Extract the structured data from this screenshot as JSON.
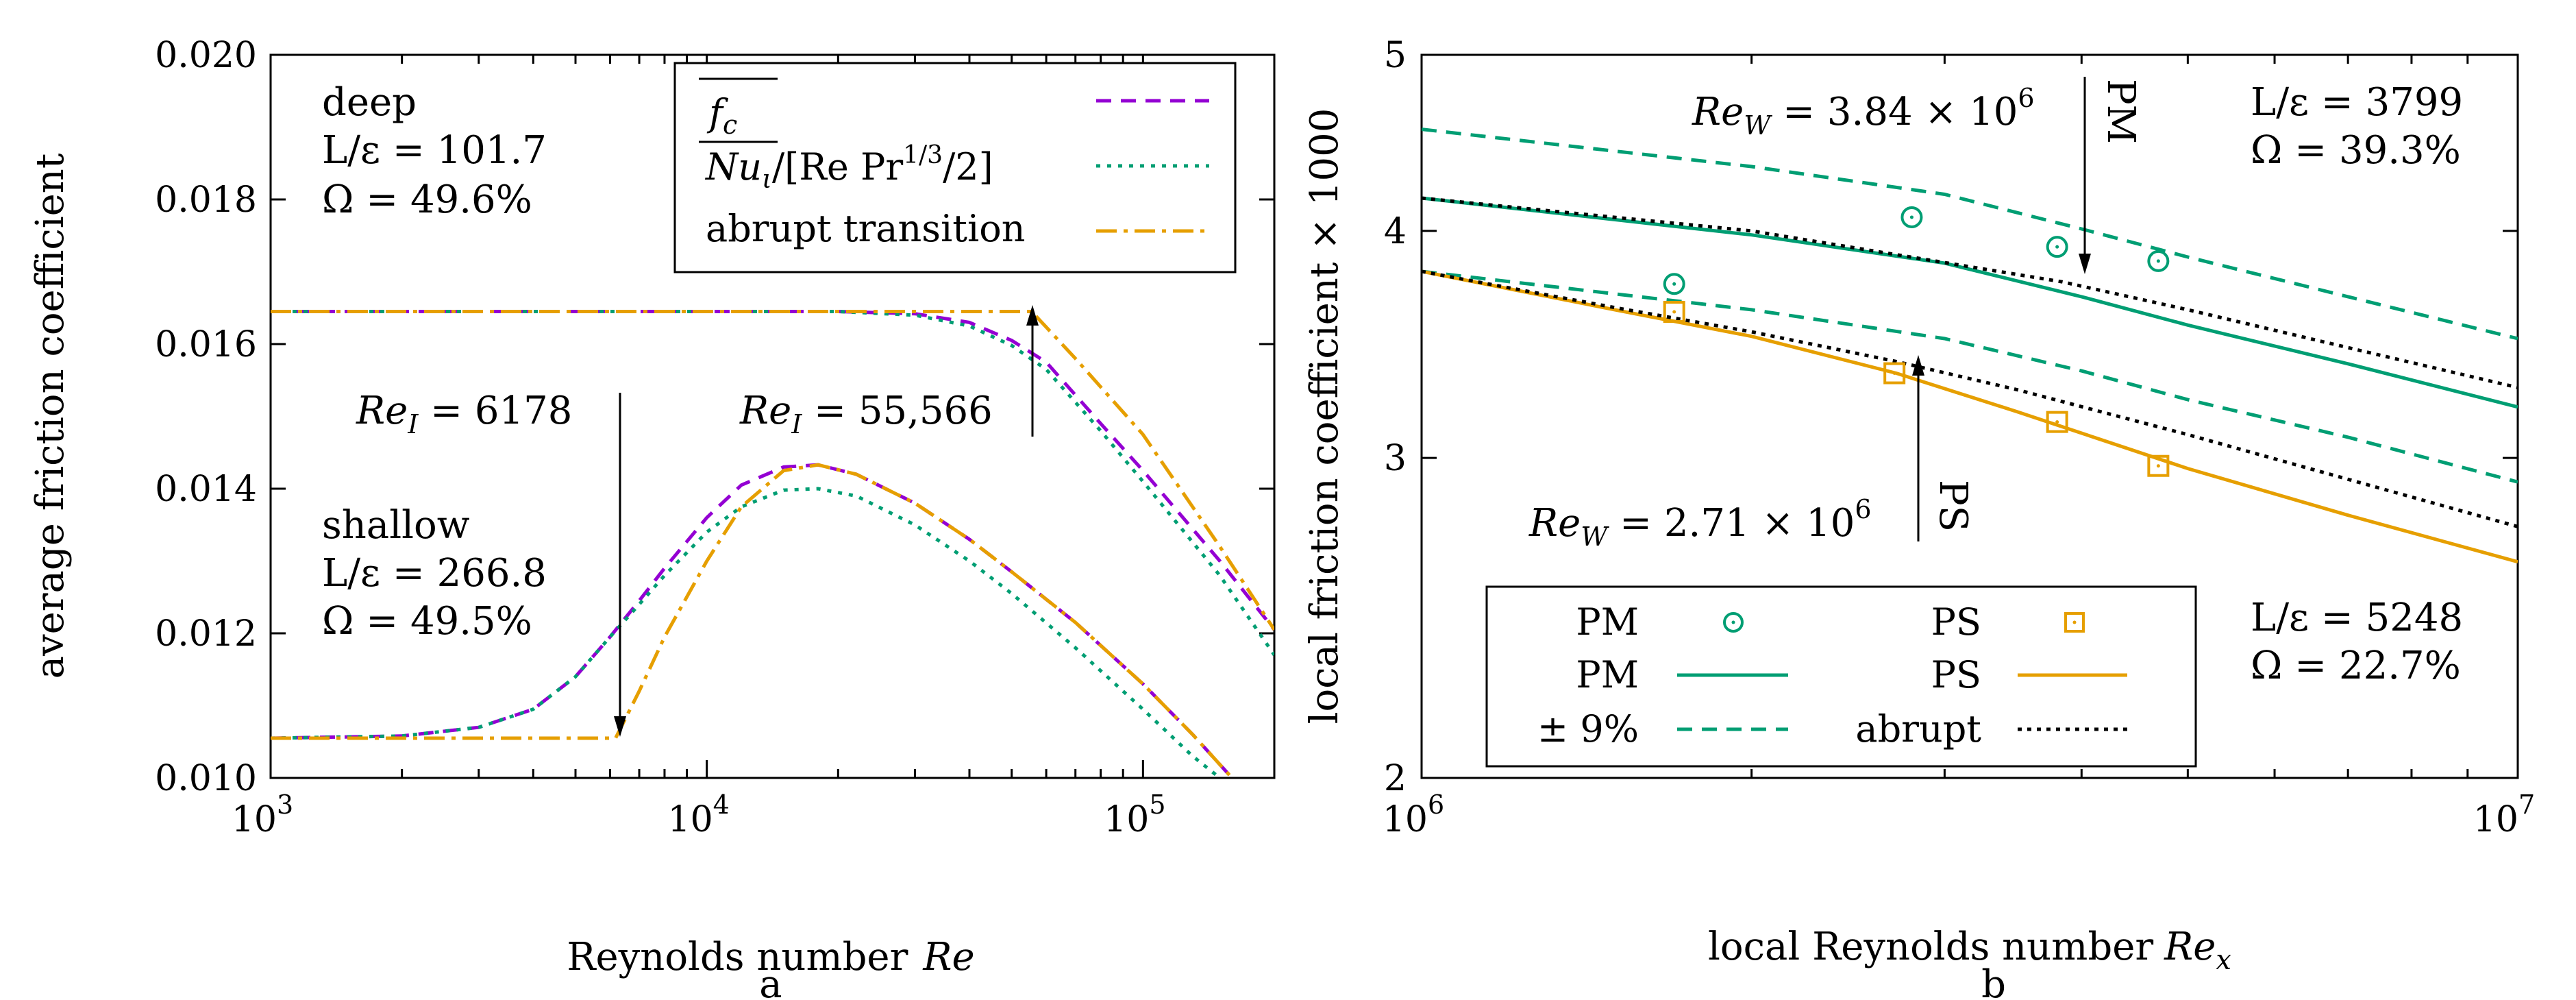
{
  "colors": {
    "purple": "#9400d3",
    "teal": "#009e73",
    "orange": "#e69f00",
    "black": "#000000"
  },
  "chart_data": [
    {
      "id": "a",
      "type": "line",
      "sublabel": "a",
      "xlabel_text": "Reynolds number",
      "xlabel_var": "Re",
      "ylabel": "average friction coefficient",
      "xscale": "log",
      "xlim": [
        1000,
        200000
      ],
      "ylim": [
        0.01,
        0.02
      ],
      "x_ticks": [
        {
          "base": "10",
          "exp": "3"
        },
        {
          "base": "10",
          "exp": "4"
        },
        {
          "base": "10",
          "exp": "5"
        }
      ],
      "y_ticks": [
        "0.010",
        "0.012",
        "0.014",
        "0.016",
        "0.018",
        "0.020"
      ],
      "legend": {
        "position": "top-right",
        "entries": [
          {
            "label": "f_c (overbar)",
            "label_main": "f",
            "label_sub": "c",
            "style": "dashed",
            "color": "purple"
          },
          {
            "label": "Nu_ι/[Re Pr^1/3/2]",
            "label_main": "Nu",
            "label_sub": "ι",
            "label_mid": "/[Re Pr",
            "label_sup": "1/3",
            "label_tail": "/2]",
            "style": "dotted",
            "color": "teal"
          },
          {
            "label": "abrupt transition",
            "style": "dashdot",
            "color": "orange"
          }
        ]
      },
      "annotations": {
        "deep": {
          "name": "deep",
          "ratio": "L/ε = 101.7",
          "omega": "Ω =  49.6%"
        },
        "shallow": {
          "name": "shallow",
          "ratio": "L/ε = 266.8",
          "omega": "Ω =  49.5%"
        },
        "arrow_low": {
          "var": "Re",
          "sub": "I",
          "value": " = 6178",
          "x": 6178
        },
        "arrow_high": {
          "var": "Re",
          "sub": "I",
          "value": " = 55,566",
          "x": 55566
        }
      },
      "series": [
        {
          "name": "deep f_c",
          "color": "purple",
          "style": "dashed",
          "x": [
            1000,
            10000,
            20000,
            30000,
            40000,
            50000,
            60000,
            80000,
            100000,
            150000,
            200000
          ],
          "y": [
            0.01645,
            0.01645,
            0.01645,
            0.01642,
            0.0163,
            0.01605,
            0.01575,
            0.0149,
            0.01425,
            0.013,
            0.01205
          ]
        },
        {
          "name": "deep Nu",
          "color": "teal",
          "style": "dotted",
          "x": [
            1000,
            10000,
            20000,
            30000,
            40000,
            50000,
            60000,
            80000,
            100000,
            150000,
            200000
          ],
          "y": [
            0.01645,
            0.01645,
            0.01645,
            0.0164,
            0.01625,
            0.01598,
            0.01565,
            0.0148,
            0.0141,
            0.0128,
            0.0117
          ]
        },
        {
          "name": "deep abrupt",
          "color": "orange",
          "style": "dashdot",
          "x": [
            1000,
            55566,
            70000,
            100000,
            150000,
            200000
          ],
          "y": [
            0.01645,
            0.01645,
            0.0158,
            0.01475,
            0.0132,
            0.01205
          ]
        },
        {
          "name": "shallow f_c",
          "color": "purple",
          "style": "dashed",
          "x": [
            1000,
            2000,
            3000,
            4000,
            5000,
            6000,
            7000,
            8000,
            10000,
            12000,
            15000,
            18000,
            22000,
            30000,
            40000,
            50000,
            70000,
            100000,
            130000,
            160000
          ],
          "y": [
            0.01055,
            0.01058,
            0.0107,
            0.01095,
            0.0114,
            0.01195,
            0.01245,
            0.0129,
            0.0136,
            0.01405,
            0.0143,
            0.01433,
            0.0142,
            0.0138,
            0.0133,
            0.01285,
            0.01215,
            0.0113,
            0.0106,
            0.01
          ]
        },
        {
          "name": "shallow Nu",
          "color": "teal",
          "style": "dotted",
          "x": [
            1000,
            2000,
            3000,
            4000,
            5000,
            6000,
            7000,
            8000,
            10000,
            12000,
            15000,
            18000,
            22000,
            30000,
            40000,
            50000,
            70000,
            100000,
            130000,
            150000
          ],
          "y": [
            0.01055,
            0.01058,
            0.0107,
            0.01095,
            0.0114,
            0.01195,
            0.0124,
            0.0128,
            0.0134,
            0.01375,
            0.01398,
            0.014,
            0.0139,
            0.0135,
            0.013,
            0.01255,
            0.0118,
            0.01095,
            0.0103,
            0.01
          ]
        },
        {
          "name": "shallow abrupt",
          "color": "orange",
          "style": "dashdot",
          "x": [
            1000,
            6178,
            7000,
            8000,
            10000,
            12000,
            15000,
            18000,
            22000,
            30000,
            40000,
            50000,
            70000,
            100000,
            130000,
            160000
          ],
          "y": [
            0.01055,
            0.01055,
            0.0112,
            0.01195,
            0.013,
            0.01375,
            0.01425,
            0.01433,
            0.0142,
            0.0138,
            0.0133,
            0.01285,
            0.01215,
            0.0113,
            0.0106,
            0.01
          ]
        }
      ]
    },
    {
      "id": "b",
      "type": "line",
      "sublabel": "b",
      "xlabel_text": "local Reynolds number",
      "xlabel_var": "Re",
      "xlabel_sub": "x",
      "ylabel": "local friction coefficient × 1000",
      "xscale": "log",
      "yscale": "log",
      "xlim": [
        1000000,
        10000000
      ],
      "ylim": [
        2,
        5
      ],
      "x_ticks": [
        {
          "base": "10",
          "exp": "6"
        },
        {
          "base": "10",
          "exp": "7"
        }
      ],
      "y_ticks": [
        "2",
        "3",
        "4",
        "5"
      ],
      "legend": {
        "position": "bottom-left",
        "entries": [
          {
            "label": "PM",
            "style": "marker-circle",
            "color": "teal"
          },
          {
            "label": "PS",
            "style": "marker-square",
            "color": "orange"
          },
          {
            "label": "PM",
            "style": "solid",
            "color": "teal"
          },
          {
            "label": "PS",
            "style": "solid",
            "color": "orange"
          },
          {
            "label": "± 9%",
            "style": "dashed",
            "color": "teal"
          },
          {
            "label": "abrupt",
            "style": "dotted",
            "color": "black"
          }
        ]
      },
      "annotations": {
        "pm": {
          "ratio": "L/ε = 3799",
          "omega": "Ω =  39.3%"
        },
        "ps": {
          "ratio": "L/ε = 5248",
          "omega": "Ω =  22.7%"
        },
        "arrow_pm": {
          "var": "Re",
          "sub": "W",
          "value": " = 3.84 × 10",
          "exp": "6",
          "tag": "PM",
          "x": 3840000
        },
        "arrow_ps": {
          "var": "Re",
          "sub": "W",
          "value": " = 2.71 × 10",
          "exp": "6",
          "tag": "PS",
          "x": 2710000
        }
      },
      "series": [
        {
          "name": "PM solid",
          "color": "teal",
          "style": "solid",
          "x": [
            1000000,
            2000000,
            3000000,
            4000000,
            5000000,
            7000000,
            10000000
          ],
          "y": [
            4.17,
            3.98,
            3.84,
            3.68,
            3.55,
            3.38,
            3.2
          ]
        },
        {
          "name": "PM +9%",
          "color": "teal",
          "style": "dashed",
          "x": [
            1000000,
            2000000,
            3000000,
            4000000,
            5000000,
            7000000,
            10000000
          ],
          "y": [
            4.55,
            4.34,
            4.19,
            4.01,
            3.87,
            3.68,
            3.49
          ]
        },
        {
          "name": "PM -9%",
          "color": "teal",
          "style": "dashed",
          "x": [
            1000000,
            2000000,
            3000000,
            4000000,
            5000000,
            7000000,
            10000000
          ],
          "y": [
            3.8,
            3.62,
            3.49,
            3.35,
            3.23,
            3.08,
            2.91
          ]
        },
        {
          "name": "PM abrupt",
          "color": "black",
          "style": "dotted",
          "x": [
            1000000,
            2000000,
            3840000,
            5000000,
            7000000,
            10000000
          ],
          "y": [
            4.17,
            4.0,
            3.75,
            3.62,
            3.45,
            3.28
          ]
        },
        {
          "name": "PS solid",
          "color": "orange",
          "style": "solid",
          "x": [
            1000000,
            1500000,
            2000000,
            2710000,
            3500000,
            5000000,
            7000000,
            10000000
          ],
          "y": [
            3.8,
            3.62,
            3.5,
            3.34,
            3.18,
            2.96,
            2.79,
            2.63
          ]
        },
        {
          "name": "PS abrupt",
          "color": "black",
          "style": "dotted",
          "x": [
            1000000,
            1500000,
            2000000,
            2710000,
            3500000,
            5000000,
            7000000,
            10000000
          ],
          "y": [
            3.8,
            3.63,
            3.52,
            3.39,
            3.27,
            3.09,
            2.92,
            2.75
          ]
        },
        {
          "name": "PM data",
          "color": "teal",
          "style": "marker-circle",
          "x": [
            1700000,
            2800000,
            3800000,
            4700000
          ],
          "y": [
            3.74,
            4.07,
            3.92,
            3.85
          ]
        },
        {
          "name": "PS data",
          "color": "orange",
          "style": "marker-square",
          "x": [
            1700000,
            2700000,
            3800000,
            4700000
          ],
          "y": [
            3.61,
            3.34,
            3.14,
            2.97
          ]
        }
      ]
    }
  ]
}
